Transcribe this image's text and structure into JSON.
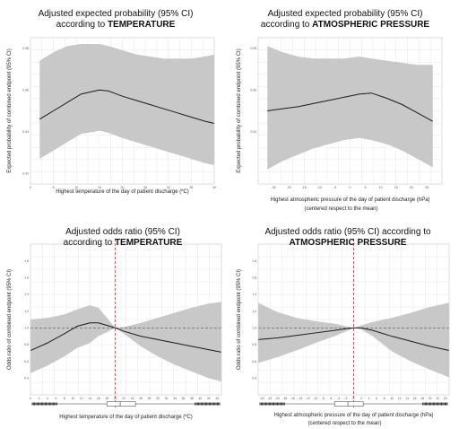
{
  "figure": {
    "panels": [
      {
        "title_line1": "Adjusted expected probability (95% CI)",
        "title_line2_prefix": "according to ",
        "title_line2_bold": "TEMPERATURE",
        "ylabel": "Expected probability of combined endpoint (95% CI)",
        "xlabel_line1": "Highest  temperature of the day of patient discharge (ºC)",
        "xlabel_line2": ""
      },
      {
        "title_line1": "Adjusted expected probability (95% CI)",
        "title_line2_prefix": "according to ",
        "title_line2_bold": "ATMOSPHERIC PRESSURE",
        "ylabel": "Expected probability of combined endpoint (95% CI)",
        "xlabel_line1": "Highest atmospheric pressure of the day of patient discharge (hPa)",
        "xlabel_line2": "(centered respect to the mean)"
      },
      {
        "title_line1": "Adjusted odds ratio (95% CI)",
        "title_line2_prefix": "according to ",
        "title_line2_bold": "TEMPERATURE",
        "ylabel": "Odds ratio of combined endpoint (95% CI)",
        "xlabel_line1": "Highest  temperature of the day of patient discharge (ºC)",
        "xlabel_line2": ""
      },
      {
        "title_line1": "Adjusted odds ratio (95% CI) according to",
        "title_line2_prefix": "",
        "title_line2_bold": "ATMOSPHERIC PRESSURE",
        "ylabel": "Odds ratio of combined endpoint (95% CI)",
        "xlabel_line1": "Highest atmospheric pressure of the day of patient discharge (hPa)",
        "xlabel_line2": "(centered respect to the mean)"
      }
    ]
  },
  "colors": {
    "band": "#c8c8c8",
    "line": "#1a1a1a",
    "grid": "#e6e6e6",
    "reference_line": "#555555",
    "vertical_marker": "#d62020"
  },
  "chart_data": [
    {
      "type": "area",
      "xlim": [
        0,
        40
      ],
      "ylim": [
        0.015,
        0.085
      ],
      "xticks": [
        0,
        5,
        10,
        15,
        20,
        25,
        30,
        35,
        40
      ],
      "yticks": [
        0.02,
        0.04,
        0.06,
        0.08
      ],
      "ytick_labels": [
        "0.02",
        "0.04",
        "0.06",
        "0.08"
      ],
      "x": [
        2,
        5,
        8,
        11,
        14,
        15,
        17,
        20,
        23,
        26,
        29,
        32,
        35,
        38,
        40
      ],
      "fit": [
        0.046,
        0.05,
        0.054,
        0.058,
        0.0595,
        0.06,
        0.0595,
        0.057,
        0.055,
        0.053,
        0.051,
        0.049,
        0.047,
        0.045,
        0.044
      ],
      "lower": [
        0.027,
        0.031,
        0.035,
        0.039,
        0.04,
        0.0405,
        0.0395,
        0.037,
        0.035,
        0.033,
        0.031,
        0.029,
        0.027,
        0.025,
        0.024
      ],
      "upper": [
        0.074,
        0.078,
        0.081,
        0.082,
        0.082,
        0.082,
        0.081,
        0.079,
        0.077,
        0.076,
        0.075,
        0.075,
        0.075,
        0.076,
        0.077
      ]
    },
    {
      "type": "area",
      "xlim": [
        -30,
        30
      ],
      "ylim": [
        0.015,
        0.085
      ],
      "xticks": [
        -25,
        -20,
        -15,
        -10,
        -5,
        0,
        5,
        10,
        15,
        20,
        25
      ],
      "yticks": [
        0.04,
        0.06,
        0.08
      ],
      "ytick_labels": [
        "0.04",
        "0.06",
        "0.08"
      ],
      "x": [
        -27,
        -22,
        -17,
        -12,
        -7,
        -2,
        3,
        7,
        12,
        17,
        22,
        27
      ],
      "fit": [
        0.05,
        0.051,
        0.052,
        0.0535,
        0.055,
        0.0565,
        0.058,
        0.0585,
        0.056,
        0.053,
        0.049,
        0.045
      ],
      "lower": [
        0.022,
        0.026,
        0.029,
        0.032,
        0.034,
        0.036,
        0.037,
        0.036,
        0.034,
        0.031,
        0.027,
        0.023
      ],
      "upper": [
        0.081,
        0.078,
        0.076,
        0.075,
        0.075,
        0.075,
        0.076,
        0.075,
        0.074,
        0.073,
        0.072,
        0.072
      ]
    },
    {
      "type": "area",
      "xlim": [
        0,
        45
      ],
      "ylim": [
        0.2,
        2.0
      ],
      "xticks": [
        0,
        2,
        4,
        6,
        8,
        10,
        12,
        14,
        16,
        18,
        20,
        22,
        24,
        26,
        28,
        30,
        32,
        34,
        36,
        38,
        40,
        42,
        44
      ],
      "yticks": [
        0.4,
        0.6,
        0.8,
        1.0,
        1.2,
        1.4,
        1.6,
        1.8
      ],
      "ytick_labels": [
        "0.4",
        "0.6",
        "0.8",
        "1.0",
        "1.2",
        "1.4",
        "1.6",
        "1.8"
      ],
      "reference_y": 1.0,
      "vertical_x": 20,
      "x": [
        0,
        4,
        8,
        11,
        14,
        16,
        18,
        20,
        22,
        26,
        30,
        34,
        38,
        42,
        45
      ],
      "fit": [
        0.73,
        0.82,
        0.93,
        1.02,
        1.06,
        1.06,
        1.03,
        1.0,
        0.96,
        0.9,
        0.86,
        0.82,
        0.78,
        0.74,
        0.71
      ],
      "lower": [
        0.46,
        0.55,
        0.66,
        0.76,
        0.82,
        0.9,
        0.95,
        1.0,
        0.93,
        0.78,
        0.66,
        0.56,
        0.48,
        0.4,
        0.36
      ],
      "upper": [
        1.1,
        1.12,
        1.16,
        1.22,
        1.27,
        1.24,
        1.12,
        1.0,
        1.01,
        1.06,
        1.12,
        1.18,
        1.24,
        1.29,
        1.31
      ]
    },
    {
      "type": "area",
      "xlim": [
        -25,
        25
      ],
      "ylim": [
        0.2,
        2.0
      ],
      "xticks": [
        -24,
        -22,
        -20,
        -18,
        -16,
        -14,
        -12,
        -10,
        -8,
        -6,
        -4,
        -2,
        0,
        2,
        4,
        6,
        8,
        10,
        12,
        14,
        16,
        18,
        20,
        22,
        24
      ],
      "yticks": [
        0.4,
        0.6,
        0.8,
        1.0,
        1.2,
        1.4,
        1.6,
        1.8
      ],
      "ytick_labels": [
        "0.4",
        "0.6",
        "0.8",
        "1.0",
        "1.2",
        "1.4",
        "1.6",
        "1.8"
      ],
      "reference_y": 1.0,
      "vertical_x": 0,
      "x": [
        -25,
        -20,
        -15,
        -10,
        -5,
        -2,
        0,
        2,
        5,
        10,
        15,
        20,
        25
      ],
      "fit": [
        0.86,
        0.88,
        0.91,
        0.94,
        0.97,
        0.99,
        1.0,
        1.0,
        0.97,
        0.9,
        0.84,
        0.78,
        0.73
      ],
      "lower": [
        0.58,
        0.65,
        0.73,
        0.82,
        0.9,
        0.96,
        1.0,
        0.98,
        0.9,
        0.72,
        0.6,
        0.5,
        0.41
      ],
      "upper": [
        1.3,
        1.19,
        1.12,
        1.08,
        1.05,
        1.02,
        1.0,
        1.03,
        1.07,
        1.12,
        1.18,
        1.25,
        1.3
      ]
    }
  ]
}
